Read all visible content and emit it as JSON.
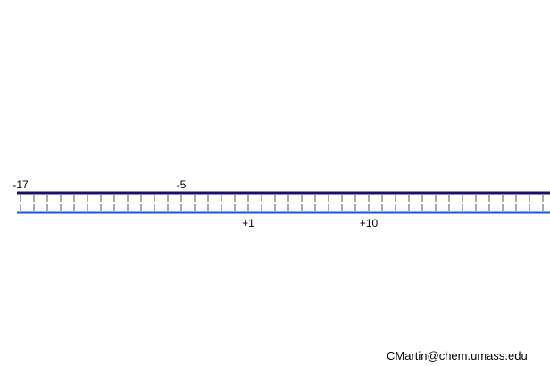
{
  "diagram": {
    "top_strand": {
      "color": "#1a1070",
      "labels": [
        {
          "text": "-17",
          "position": -17
        },
        {
          "text": "-5",
          "position": -5
        }
      ]
    },
    "bottom_strand": {
      "color": "#1a55e8",
      "labels": [
        {
          "text": "+1",
          "position": 1
        },
        {
          "text": "+10",
          "position": 10
        }
      ]
    },
    "tick_color": "#707070"
  },
  "footer": {
    "credit": "CMartin@chem.umass.edu"
  }
}
